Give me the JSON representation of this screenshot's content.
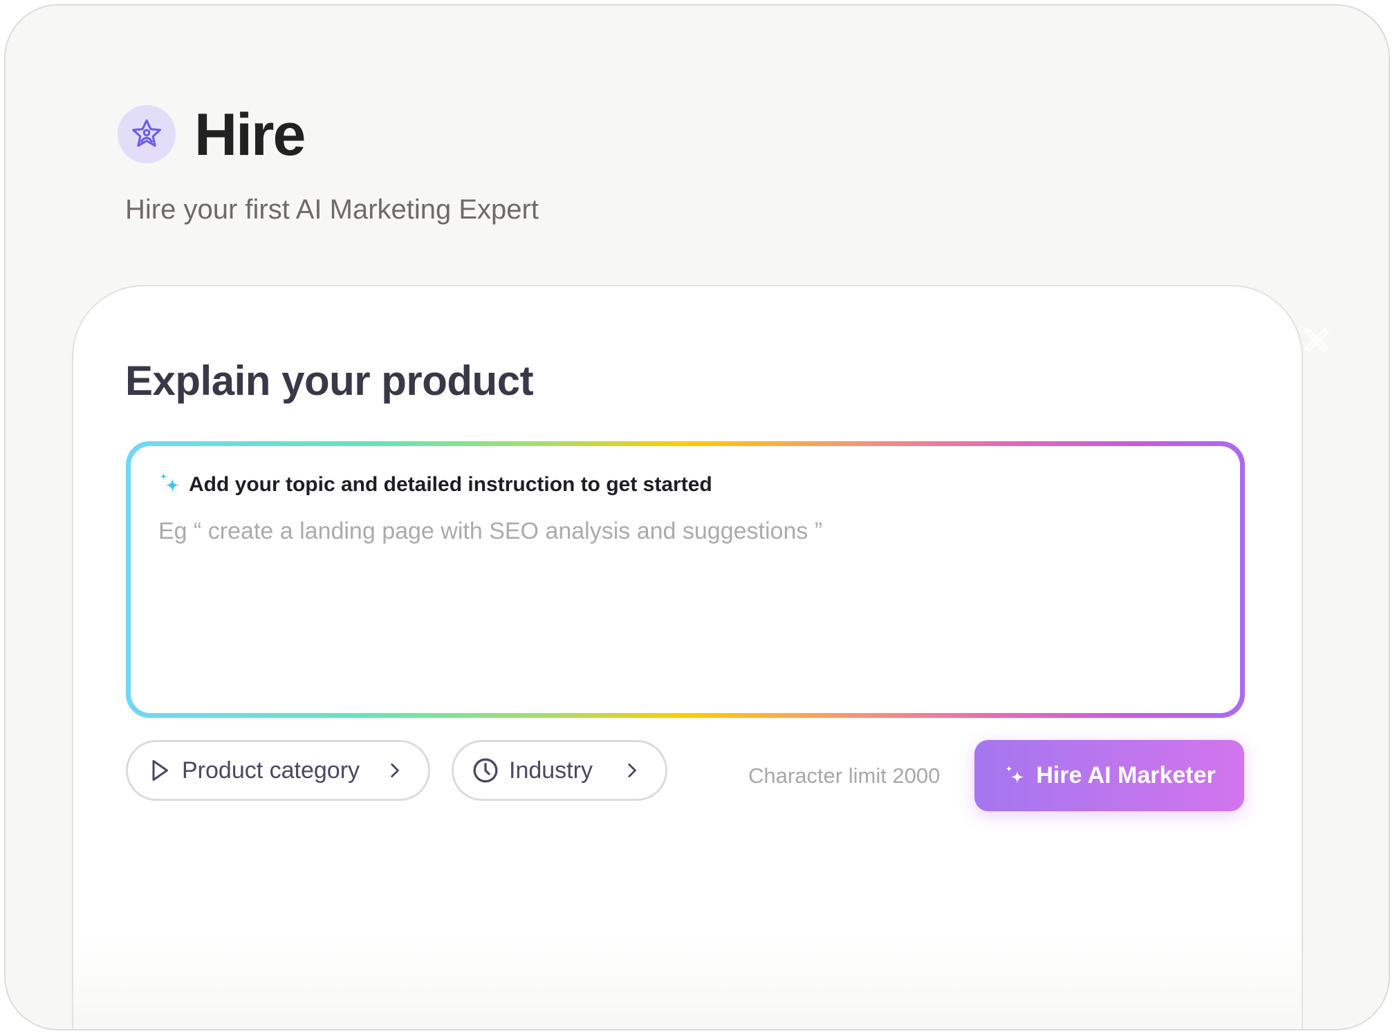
{
  "header": {
    "title": "Hire",
    "subtitle": "Hire your first AI Marketing Expert",
    "logo_icon": "star-person-icon"
  },
  "card": {
    "title": "Explain your product",
    "prompt": {
      "label": "Add your topic and detailed instruction to get started",
      "placeholder": "Eg “ create a landing page with SEO analysis and suggestions ”",
      "value": ""
    },
    "chips": [
      {
        "label": "Product category",
        "icon": "play-icon"
      },
      {
        "label": "Industry",
        "icon": "clock-icon"
      }
    ],
    "char_limit": "Character limit 2000",
    "submit_label": "Hire AI Marketer"
  },
  "colors": {
    "accent_start": "#a476ef",
    "accent_end": "#d275ee",
    "logo_bg": "#e2defa",
    "logo_icon": "#6b5cf0",
    "sparkle": "#3cc4f5"
  }
}
